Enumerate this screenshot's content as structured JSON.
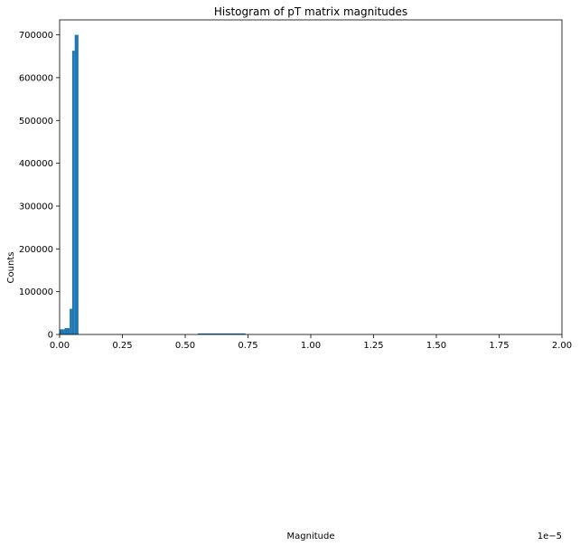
{
  "chart_data": {
    "type": "bar",
    "title": "Histogram of pT matrix magnitudes",
    "xlabel": "Magnitude",
    "ylabel": "Counts",
    "x_scale_label": "1e−5",
    "xlim": [
      0,
      2.0
    ],
    "ylim": [
      0,
      735000
    ],
    "x_ticks": [
      0.0,
      0.25,
      0.5,
      0.75,
      1.0,
      1.25,
      1.5,
      1.75,
      2.0
    ],
    "x_tick_labels": [
      "0.00",
      "0.25",
      "0.50",
      "0.75",
      "1.00",
      "1.25",
      "1.50",
      "1.75",
      "2.00"
    ],
    "y_ticks": [
      0,
      100000,
      200000,
      300000,
      400000,
      500000,
      600000,
      700000
    ],
    "y_tick_labels": [
      "0",
      "100000",
      "200000",
      "300000",
      "400000",
      "500000",
      "600000",
      "700000"
    ],
    "grid": false,
    "bar_color": "#1f77b4",
    "bins": [
      {
        "x0": 0.0,
        "x1": 0.02,
        "count": 12000
      },
      {
        "x0": 0.02,
        "x1": 0.04,
        "count": 15000
      },
      {
        "x0": 0.04,
        "x1": 0.05,
        "count": 60000
      },
      {
        "x0": 0.05,
        "x1": 0.06,
        "count": 663000
      },
      {
        "x0": 0.06,
        "x1": 0.075,
        "count": 700000
      },
      {
        "x0": 0.55,
        "x1": 0.74,
        "count": 2500
      }
    ]
  }
}
